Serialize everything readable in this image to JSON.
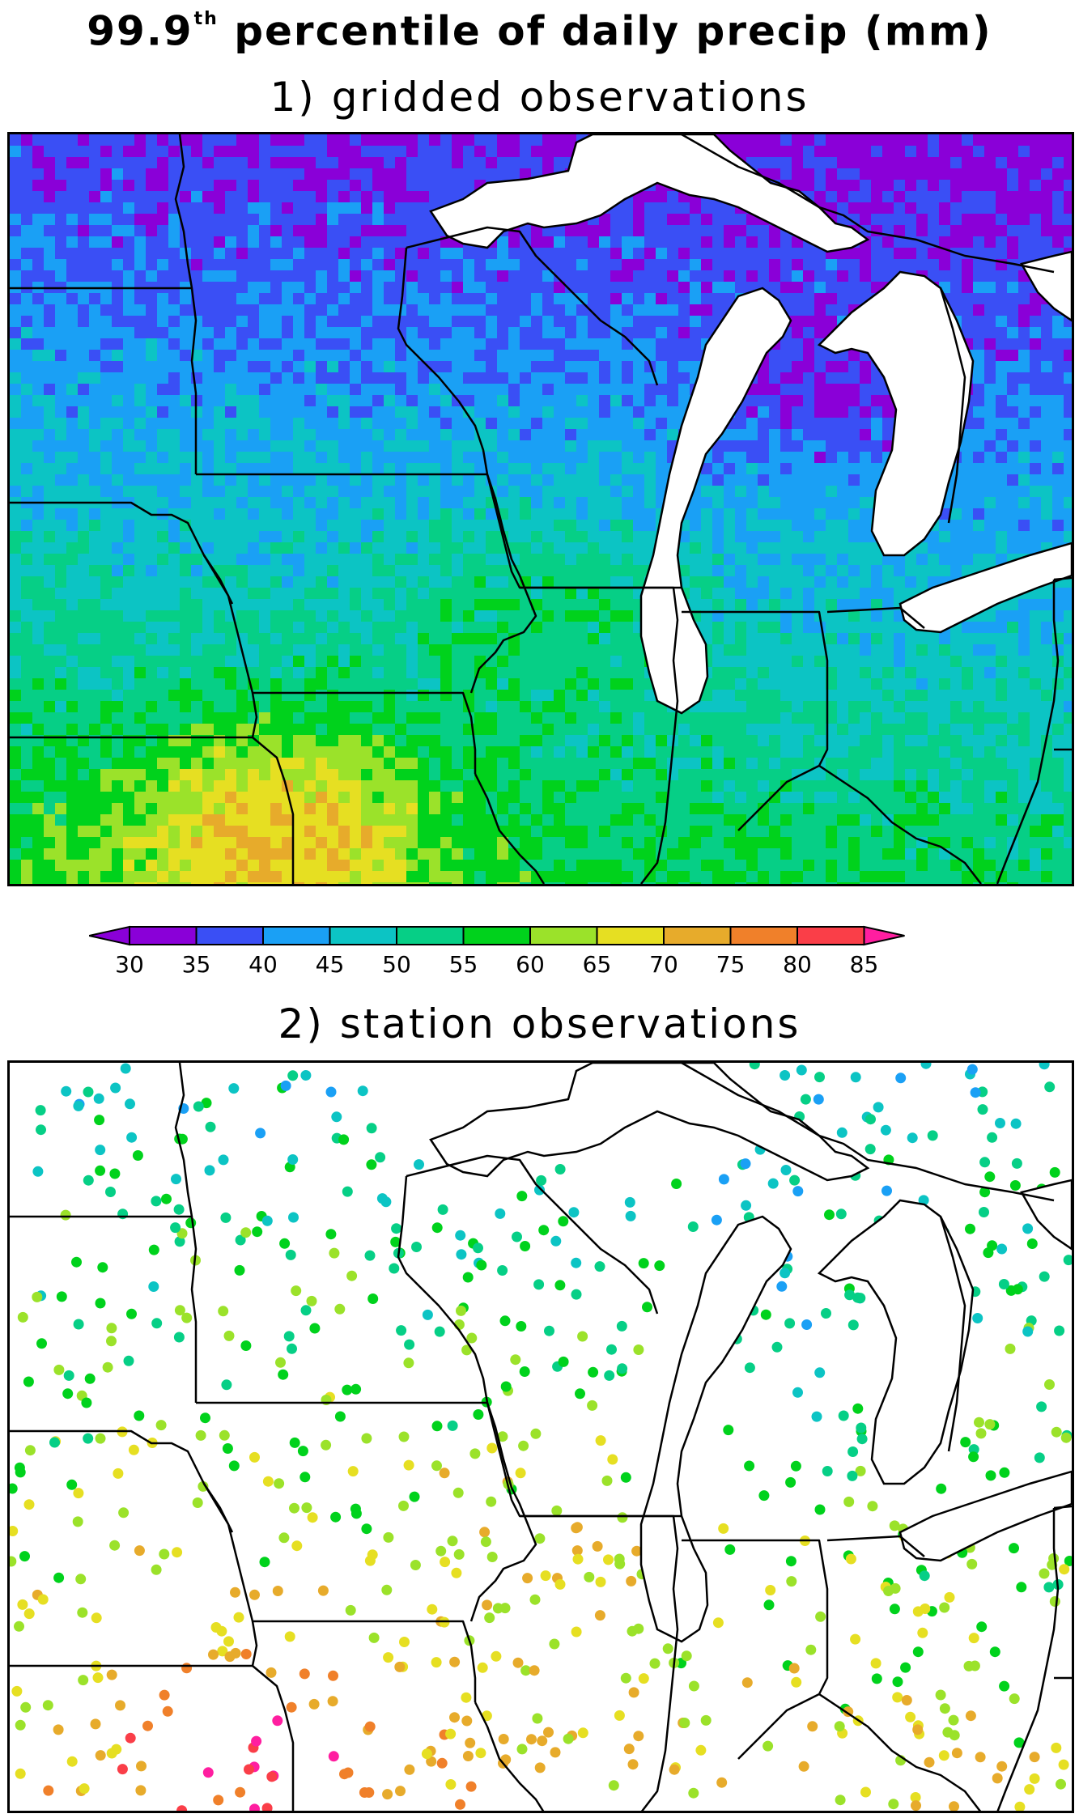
{
  "title": {
    "main": "99.9",
    "superscript": "th",
    "rest": " percentile of daily precip (mm)"
  },
  "panels": [
    {
      "id": "gridded",
      "label": "1) gridded observations"
    },
    {
      "id": "station",
      "label": "2) station observations"
    }
  ],
  "colorbar": {
    "ticks": [
      "30",
      "35",
      "40",
      "45",
      "50",
      "55",
      "60",
      "65",
      "70",
      "75",
      "80",
      "85"
    ],
    "colors": [
      "#8a00d8",
      "#8a00d8",
      "#3a4ff5",
      "#1aa0f5",
      "#0cc4c4",
      "#06cf86",
      "#00d21c",
      "#9be22a",
      "#e6df22",
      "#e7ab2b",
      "#f0802a",
      "#fa3e48",
      "#ff1ea0"
    ]
  },
  "colors": {
    "lake": "#ffffff",
    "border": "#000000"
  }
}
